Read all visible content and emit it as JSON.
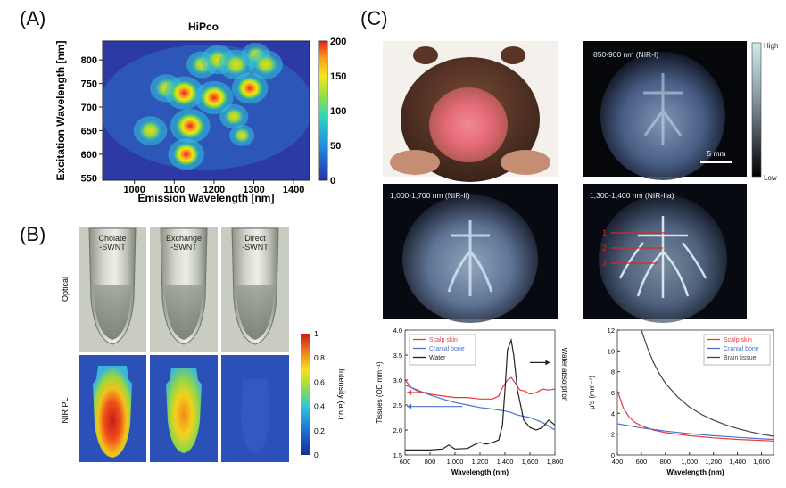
{
  "panel_labels": {
    "a": "(A)",
    "b": "(B)",
    "c": "(C)"
  },
  "panel_a": {
    "title": "HiPco",
    "xlabel": "Emission Wavelength [nm]",
    "ylabel": "Excitation Wavelength [nm]",
    "x_ticks": [
      "1000",
      "1100",
      "1200",
      "1300",
      "1400"
    ],
    "y_ticks": [
      "550",
      "600",
      "650",
      "700",
      "750",
      "800"
    ],
    "colorbar_ticks": [
      "0",
      "50",
      "100",
      "150",
      "200"
    ]
  },
  "panel_b": {
    "tube_labels": [
      [
        "Cholate",
        "-SWNT"
      ],
      [
        "Exchange",
        "-SWNT"
      ],
      [
        "Direct",
        "-SWNT"
      ]
    ],
    "row_labels": [
      "Optical",
      "NIR PL"
    ],
    "colorbar_label": "Intensity (a.u.)",
    "colorbar_ticks": [
      "0",
      "0.2",
      "0.4",
      "0.6",
      "0.8",
      "1"
    ]
  },
  "panel_c": {
    "photo_labels": [
      "850-900 nm (NIR-I)",
      "1,000-1,700 nm (NIR-II)",
      "1,300-1,400 nm (NIR-IIa)"
    ],
    "colorbar_high": "High",
    "colorbar_low": "Low",
    "scalebar": "5 mm",
    "vessel_labels": [
      "1",
      "2",
      "3"
    ]
  },
  "colors": {
    "scalp": "#e8393f",
    "bone": "#4a73c9",
    "water": "#222222",
    "brain": "#444444"
  },
  "chart_data": [
    {
      "type": "heatmap",
      "title": "HiPco",
      "xlabel": "Emission Wavelength [nm]",
      "ylabel": "Excitation Wavelength [nm]",
      "xlim": [
        920,
        1440
      ],
      "ylim": [
        545,
        840
      ],
      "clim": [
        0,
        200
      ],
      "peaks": [
        {
          "x": 1040,
          "y": 650,
          "v": 150
        },
        {
          "x": 1080,
          "y": 740,
          "v": 140
        },
        {
          "x": 1125,
          "y": 730,
          "v": 190
        },
        {
          "x": 1140,
          "y": 660,
          "v": 200
        },
        {
          "x": 1130,
          "y": 600,
          "v": 170
        },
        {
          "x": 1170,
          "y": 790,
          "v": 130
        },
        {
          "x": 1200,
          "y": 720,
          "v": 190
        },
        {
          "x": 1210,
          "y": 800,
          "v": 150
        },
        {
          "x": 1250,
          "y": 680,
          "v": 110
        },
        {
          "x": 1255,
          "y": 790,
          "v": 160
        },
        {
          "x": 1290,
          "y": 740,
          "v": 170
        },
        {
          "x": 1305,
          "y": 810,
          "v": 110
        },
        {
          "x": 1330,
          "y": 790,
          "v": 150
        },
        {
          "x": 1270,
          "y": 640,
          "v": 80
        }
      ]
    },
    {
      "type": "line",
      "xlabel": "Wavelength (nm)",
      "ylabel": "Tissues (OD mm⁻¹)",
      "y2label": "Water absorption",
      "xlim": [
        600,
        1800
      ],
      "ylim": [
        1.5,
        4.0
      ],
      "x_ticks": [
        600,
        800,
        1000,
        1200,
        1400,
        1600,
        1800
      ],
      "x_tick_labels": [
        "600",
        "800",
        "1,000",
        "1,200",
        "1,400",
        "1,600",
        "1,800"
      ],
      "y_ticks": [
        1.5,
        2.0,
        2.5,
        3.0,
        3.5,
        4.0
      ],
      "y_tick_labels": [
        "1.5",
        "2.0",
        "2.5",
        "3.0",
        "3.5",
        "4.0"
      ],
      "legend_position": "top-left",
      "series": [
        {
          "name": "Scalp skin",
          "color": "#e8393f",
          "x": [
            600,
            650,
            700,
            800,
            900,
            1000,
            1100,
            1200,
            1300,
            1350,
            1380,
            1420,
            1450,
            1480,
            1520,
            1560,
            1600,
            1650,
            1700,
            1750,
            1800
          ],
          "y": [
            3.0,
            2.85,
            2.78,
            2.72,
            2.68,
            2.65,
            2.65,
            2.62,
            2.62,
            2.68,
            2.85,
            3.0,
            3.05,
            2.95,
            2.8,
            2.78,
            2.72,
            2.75,
            2.82,
            2.8,
            2.82
          ]
        },
        {
          "name": "Cranial bone",
          "color": "#4a73c9",
          "x": [
            600,
            700,
            800,
            900,
            1000,
            1100,
            1200,
            1300,
            1400,
            1450,
            1500,
            1600,
            1700,
            1800
          ],
          "y": [
            2.9,
            2.8,
            2.7,
            2.62,
            2.55,
            2.5,
            2.45,
            2.42,
            2.38,
            2.35,
            2.3,
            2.25,
            2.15,
            2.0
          ]
        },
        {
          "name": "Water",
          "color": "#222222",
          "x": [
            600,
            700,
            800,
            900,
            950,
            980,
            1000,
            1100,
            1150,
            1200,
            1250,
            1300,
            1350,
            1380,
            1400,
            1420,
            1450,
            1470,
            1500,
            1550,
            1600,
            1650,
            1700,
            1750,
            1800
          ],
          "y": [
            1.6,
            1.6,
            1.6,
            1.62,
            1.7,
            1.65,
            1.62,
            1.63,
            1.7,
            1.75,
            1.72,
            1.75,
            1.8,
            2.1,
            2.8,
            3.6,
            3.8,
            3.5,
            2.8,
            2.2,
            2.05,
            2.0,
            2.05,
            2.2,
            2.1
          ]
        }
      ]
    },
    {
      "type": "line",
      "xlabel": "Wavelength (nm)",
      "ylabel": "μ′s (mm⁻¹)",
      "xlim": [
        400,
        1700
      ],
      "ylim": [
        0,
        12
      ],
      "x_ticks": [
        400,
        600,
        800,
        1000,
        1200,
        1400,
        1600
      ],
      "x_tick_labels": [
        "400",
        "600",
        "800",
        "1,000",
        "1,200",
        "1,400",
        "1,600"
      ],
      "y_ticks": [
        0,
        2,
        4,
        6,
        8,
        10,
        12
      ],
      "y_tick_labels": [
        "0",
        "2",
        "4",
        "6",
        "8",
        "10",
        "12"
      ],
      "legend_position": "top-right",
      "series": [
        {
          "name": "Scalp skin",
          "color": "#e8393f",
          "x": [
            400,
            450,
            500,
            550,
            600,
            700,
            800,
            1000,
            1200,
            1400,
            1600,
            1700
          ],
          "y": [
            6.2,
            4.5,
            3.6,
            3.1,
            2.8,
            2.4,
            2.15,
            1.85,
            1.65,
            1.5,
            1.4,
            1.35
          ]
        },
        {
          "name": "Cranial bone",
          "color": "#4a73c9",
          "x": [
            400,
            500,
            600,
            700,
            800,
            1000,
            1200,
            1400,
            1600,
            1700
          ],
          "y": [
            3.0,
            2.8,
            2.6,
            2.45,
            2.3,
            2.05,
            1.85,
            1.7,
            1.55,
            1.5
          ]
        },
        {
          "name": "Brain tissue",
          "color": "#444444",
          "x": [
            600,
            650,
            700,
            750,
            800,
            900,
            1000,
            1100,
            1200,
            1300,
            1400,
            1500,
            1600,
            1700
          ],
          "y": [
            12.0,
            10.3,
            8.9,
            7.8,
            6.9,
            5.6,
            4.6,
            3.9,
            3.35,
            2.9,
            2.55,
            2.25,
            2.0,
            1.8
          ]
        }
      ]
    }
  ]
}
